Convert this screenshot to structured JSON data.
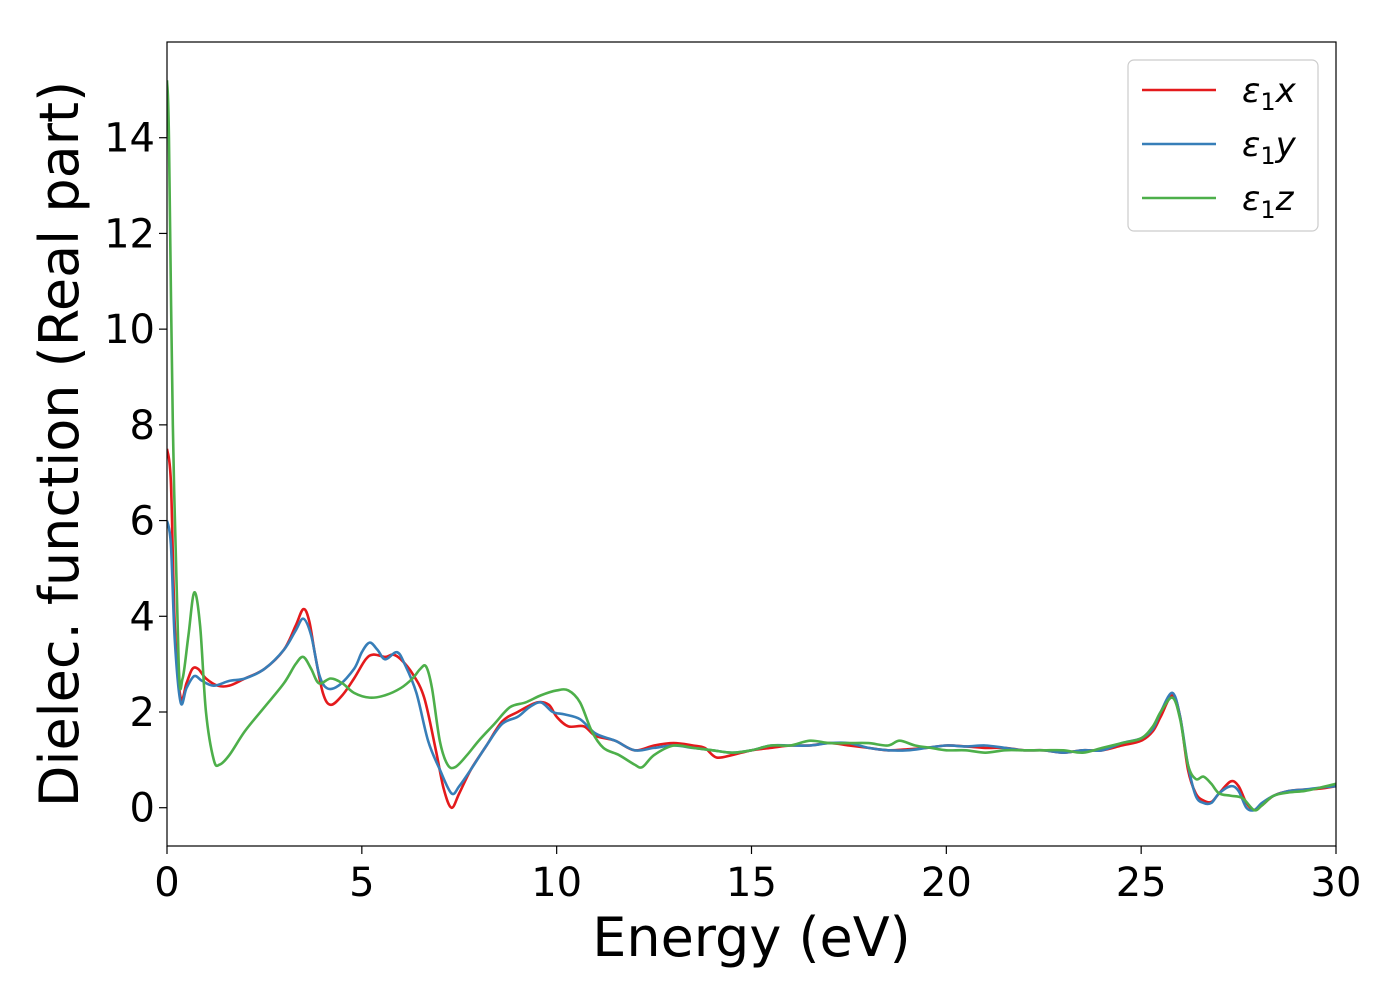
{
  "chart_data": {
    "type": "line",
    "xlabel": "Energy (eV)",
    "ylabel": "Dielec. function (Real part)",
    "xlim": [
      0,
      30
    ],
    "ylim": [
      -0.8,
      16.0
    ],
    "xticks": [
      0,
      5,
      10,
      15,
      20,
      25,
      30
    ],
    "yticks": [
      0,
      2,
      4,
      6,
      8,
      10,
      12,
      14
    ],
    "grid": false,
    "legend_position": "top-right",
    "series": [
      {
        "name": "ε₁x",
        "legend_base": "ε",
        "legend_sub": "1",
        "legend_var": "x",
        "color": "#e41a1c",
        "points": [
          [
            0,
            7.5
          ],
          [
            0.1,
            6.8
          ],
          [
            0.2,
            3.8
          ],
          [
            0.35,
            2.3
          ],
          [
            0.5,
            2.6
          ],
          [
            0.65,
            2.9
          ],
          [
            0.8,
            2.9
          ],
          [
            1.0,
            2.7
          ],
          [
            1.3,
            2.55
          ],
          [
            1.6,
            2.55
          ],
          [
            2.0,
            2.7
          ],
          [
            2.5,
            2.9
          ],
          [
            3.0,
            3.3
          ],
          [
            3.3,
            3.8
          ],
          [
            3.5,
            4.15
          ],
          [
            3.65,
            3.9
          ],
          [
            3.8,
            3.2
          ],
          [
            4.0,
            2.4
          ],
          [
            4.2,
            2.15
          ],
          [
            4.5,
            2.35
          ],
          [
            4.8,
            2.7
          ],
          [
            5.1,
            3.1
          ],
          [
            5.3,
            3.2
          ],
          [
            5.6,
            3.15
          ],
          [
            5.8,
            3.2
          ],
          [
            6.0,
            3.1
          ],
          [
            6.3,
            2.8
          ],
          [
            6.6,
            2.3
          ],
          [
            6.9,
            1.2
          ],
          [
            7.1,
            0.4
          ],
          [
            7.3,
            0.0
          ],
          [
            7.5,
            0.3
          ],
          [
            7.8,
            0.8
          ],
          [
            8.2,
            1.3
          ],
          [
            8.6,
            1.8
          ],
          [
            9.0,
            2.0
          ],
          [
            9.5,
            2.2
          ],
          [
            9.8,
            2.15
          ],
          [
            10.0,
            1.9
          ],
          [
            10.3,
            1.7
          ],
          [
            10.7,
            1.7
          ],
          [
            11.0,
            1.5
          ],
          [
            11.5,
            1.4
          ],
          [
            12.0,
            1.2
          ],
          [
            12.5,
            1.3
          ],
          [
            13.0,
            1.35
          ],
          [
            13.5,
            1.3
          ],
          [
            13.8,
            1.25
          ],
          [
            14.1,
            1.05
          ],
          [
            14.5,
            1.1
          ],
          [
            15.0,
            1.2
          ],
          [
            15.5,
            1.25
          ],
          [
            16.0,
            1.3
          ],
          [
            16.5,
            1.3
          ],
          [
            17.0,
            1.35
          ],
          [
            17.5,
            1.3
          ],
          [
            18.0,
            1.25
          ],
          [
            18.5,
            1.2
          ],
          [
            19.0,
            1.22
          ],
          [
            19.5,
            1.25
          ],
          [
            20.0,
            1.3
          ],
          [
            20.5,
            1.28
          ],
          [
            21.0,
            1.25
          ],
          [
            21.5,
            1.25
          ],
          [
            22.0,
            1.2
          ],
          [
            22.5,
            1.2
          ],
          [
            23.0,
            1.15
          ],
          [
            23.5,
            1.2
          ],
          [
            24.0,
            1.2
          ],
          [
            24.5,
            1.3
          ],
          [
            25.0,
            1.4
          ],
          [
            25.3,
            1.6
          ],
          [
            25.5,
            1.9
          ],
          [
            25.8,
            2.35
          ],
          [
            26.0,
            1.9
          ],
          [
            26.2,
            0.8
          ],
          [
            26.4,
            0.3
          ],
          [
            26.6,
            0.15
          ],
          [
            26.8,
            0.12
          ],
          [
            27.0,
            0.3
          ],
          [
            27.3,
            0.55
          ],
          [
            27.5,
            0.45
          ],
          [
            27.7,
            0.1
          ],
          [
            27.9,
            -0.05
          ],
          [
            28.1,
            0.05
          ],
          [
            28.4,
            0.25
          ],
          [
            28.8,
            0.35
          ],
          [
            29.2,
            0.38
          ],
          [
            29.6,
            0.4
          ],
          [
            30.0,
            0.45
          ]
        ]
      },
      {
        "name": "ε₁y",
        "legend_base": "ε",
        "legend_sub": "1",
        "legend_var": "y",
        "color": "#377eb8",
        "points": [
          [
            0,
            6.0
          ],
          [
            0.1,
            5.5
          ],
          [
            0.2,
            3.5
          ],
          [
            0.35,
            2.2
          ],
          [
            0.5,
            2.5
          ],
          [
            0.7,
            2.75
          ],
          [
            0.9,
            2.65
          ],
          [
            1.2,
            2.55
          ],
          [
            1.6,
            2.65
          ],
          [
            2.0,
            2.7
          ],
          [
            2.5,
            2.9
          ],
          [
            3.0,
            3.3
          ],
          [
            3.3,
            3.7
          ],
          [
            3.5,
            3.95
          ],
          [
            3.7,
            3.6
          ],
          [
            3.9,
            2.8
          ],
          [
            4.1,
            2.5
          ],
          [
            4.4,
            2.55
          ],
          [
            4.8,
            2.9
          ],
          [
            5.0,
            3.25
          ],
          [
            5.2,
            3.45
          ],
          [
            5.4,
            3.3
          ],
          [
            5.6,
            3.1
          ],
          [
            5.9,
            3.25
          ],
          [
            6.1,
            3.0
          ],
          [
            6.4,
            2.4
          ],
          [
            6.7,
            1.4
          ],
          [
            7.0,
            0.8
          ],
          [
            7.3,
            0.3
          ],
          [
            7.5,
            0.45
          ],
          [
            7.8,
            0.8
          ],
          [
            8.2,
            1.3
          ],
          [
            8.6,
            1.75
          ],
          [
            9.0,
            1.9
          ],
          [
            9.3,
            2.1
          ],
          [
            9.6,
            2.2
          ],
          [
            9.9,
            2.0
          ],
          [
            10.2,
            1.95
          ],
          [
            10.6,
            1.85
          ],
          [
            11.0,
            1.55
          ],
          [
            11.5,
            1.4
          ],
          [
            12.0,
            1.2
          ],
          [
            12.5,
            1.25
          ],
          [
            13.0,
            1.3
          ],
          [
            13.5,
            1.25
          ],
          [
            14.0,
            1.2
          ],
          [
            14.5,
            1.15
          ],
          [
            15.0,
            1.2
          ],
          [
            15.5,
            1.3
          ],
          [
            16.0,
            1.3
          ],
          [
            16.5,
            1.3
          ],
          [
            17.0,
            1.35
          ],
          [
            17.5,
            1.35
          ],
          [
            18.0,
            1.25
          ],
          [
            18.5,
            1.2
          ],
          [
            19.0,
            1.2
          ],
          [
            19.5,
            1.25
          ],
          [
            20.0,
            1.3
          ],
          [
            20.5,
            1.28
          ],
          [
            21.0,
            1.3
          ],
          [
            21.5,
            1.25
          ],
          [
            22.0,
            1.2
          ],
          [
            22.5,
            1.2
          ],
          [
            23.0,
            1.15
          ],
          [
            23.5,
            1.2
          ],
          [
            24.0,
            1.2
          ],
          [
            24.5,
            1.35
          ],
          [
            25.0,
            1.45
          ],
          [
            25.3,
            1.65
          ],
          [
            25.5,
            2.0
          ],
          [
            25.8,
            2.4
          ],
          [
            26.0,
            1.9
          ],
          [
            26.2,
            0.9
          ],
          [
            26.4,
            0.25
          ],
          [
            26.6,
            0.1
          ],
          [
            26.8,
            0.1
          ],
          [
            27.0,
            0.3
          ],
          [
            27.3,
            0.45
          ],
          [
            27.5,
            0.35
          ],
          [
            27.7,
            0.0
          ],
          [
            27.9,
            -0.05
          ],
          [
            28.1,
            0.1
          ],
          [
            28.4,
            0.25
          ],
          [
            28.8,
            0.35
          ],
          [
            29.2,
            0.38
          ],
          [
            29.6,
            0.42
          ],
          [
            30.0,
            0.45
          ]
        ]
      },
      {
        "name": "ε₁z",
        "legend_base": "ε",
        "legend_sub": "1",
        "legend_var": "z",
        "color": "#4daf4a",
        "points": [
          [
            0,
            15.2
          ],
          [
            0.05,
            14.0
          ],
          [
            0.15,
            8.0
          ],
          [
            0.3,
            3.0
          ],
          [
            0.4,
            2.7
          ],
          [
            0.55,
            3.6
          ],
          [
            0.7,
            4.5
          ],
          [
            0.85,
            3.8
          ],
          [
            1.0,
            2.0
          ],
          [
            1.2,
            1.0
          ],
          [
            1.35,
            0.9
          ],
          [
            1.6,
            1.1
          ],
          [
            2.0,
            1.6
          ],
          [
            2.5,
            2.1
          ],
          [
            3.0,
            2.6
          ],
          [
            3.3,
            3.0
          ],
          [
            3.5,
            3.15
          ],
          [
            3.7,
            2.9
          ],
          [
            3.9,
            2.6
          ],
          [
            4.2,
            2.7
          ],
          [
            4.5,
            2.6
          ],
          [
            4.8,
            2.4
          ],
          [
            5.2,
            2.3
          ],
          [
            5.6,
            2.35
          ],
          [
            6.0,
            2.5
          ],
          [
            6.3,
            2.7
          ],
          [
            6.5,
            2.9
          ],
          [
            6.65,
            2.95
          ],
          [
            6.8,
            2.5
          ],
          [
            7.0,
            1.4
          ],
          [
            7.2,
            0.9
          ],
          [
            7.4,
            0.85
          ],
          [
            7.7,
            1.1
          ],
          [
            8.0,
            1.4
          ],
          [
            8.4,
            1.75
          ],
          [
            8.8,
            2.1
          ],
          [
            9.2,
            2.2
          ],
          [
            9.6,
            2.35
          ],
          [
            10.0,
            2.45
          ],
          [
            10.3,
            2.45
          ],
          [
            10.6,
            2.2
          ],
          [
            10.9,
            1.6
          ],
          [
            11.2,
            1.25
          ],
          [
            11.6,
            1.1
          ],
          [
            12.0,
            0.9
          ],
          [
            12.2,
            0.85
          ],
          [
            12.5,
            1.1
          ],
          [
            13.0,
            1.3
          ],
          [
            13.5,
            1.25
          ],
          [
            14.0,
            1.2
          ],
          [
            14.5,
            1.15
          ],
          [
            15.0,
            1.2
          ],
          [
            15.5,
            1.3
          ],
          [
            16.0,
            1.3
          ],
          [
            16.5,
            1.4
          ],
          [
            17.0,
            1.35
          ],
          [
            17.5,
            1.35
          ],
          [
            18.0,
            1.35
          ],
          [
            18.5,
            1.3
          ],
          [
            18.8,
            1.4
          ],
          [
            19.2,
            1.3
          ],
          [
            19.6,
            1.25
          ],
          [
            20.0,
            1.2
          ],
          [
            20.5,
            1.2
          ],
          [
            21.0,
            1.15
          ],
          [
            21.5,
            1.2
          ],
          [
            22.0,
            1.2
          ],
          [
            22.5,
            1.2
          ],
          [
            23.0,
            1.2
          ],
          [
            23.5,
            1.15
          ],
          [
            24.0,
            1.25
          ],
          [
            24.5,
            1.35
          ],
          [
            25.0,
            1.45
          ],
          [
            25.3,
            1.7
          ],
          [
            25.5,
            2.0
          ],
          [
            25.8,
            2.3
          ],
          [
            26.0,
            1.85
          ],
          [
            26.2,
            0.9
          ],
          [
            26.4,
            0.6
          ],
          [
            26.6,
            0.65
          ],
          [
            26.8,
            0.5
          ],
          [
            27.0,
            0.3
          ],
          [
            27.3,
            0.25
          ],
          [
            27.6,
            0.2
          ],
          [
            27.9,
            -0.05
          ],
          [
            28.1,
            0.05
          ],
          [
            28.4,
            0.25
          ],
          [
            28.8,
            0.32
          ],
          [
            29.2,
            0.35
          ],
          [
            29.6,
            0.42
          ],
          [
            30.0,
            0.5
          ]
        ]
      }
    ]
  }
}
